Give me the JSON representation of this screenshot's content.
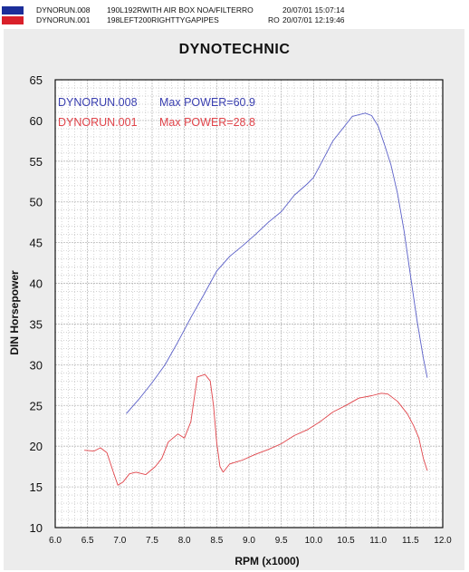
{
  "header": {
    "rows": [
      {
        "run": "DYNORUN.008",
        "description": "190L192RWITH AIR BOX NOA/FILTERRO",
        "timestamp": "20/07/01 15:07:14",
        "color": "#1c2e9a"
      },
      {
        "run": "DYNORUN.001",
        "description": "198LEFT200RIGHTTYGAPIPES",
        "suffix": "RO",
        "timestamp": "20/07/01 12:19:46",
        "color": "#d9202a"
      }
    ]
  },
  "colors": {
    "panel": "#ececec",
    "plot_bg": "#ffffff",
    "grid": "#b8b8b8",
    "blue": "#5a5fc8",
    "red": "#e0444a"
  },
  "chart_data": {
    "type": "line",
    "title": "DYNOTECHNIC",
    "xlabel": "RPM (x1000)",
    "ylabel": "DIN Horsepower",
    "xlim": [
      6.0,
      12.0
    ],
    "ylim": [
      10,
      65
    ],
    "xticks": [
      "6.0",
      "6.5",
      "7.0",
      "7.5",
      "8.0",
      "8.5",
      "9.0",
      "9.5",
      "10.0",
      "10.5",
      "11.0",
      "11.5",
      "12.0"
    ],
    "yticks": [
      "10",
      "15",
      "20",
      "25",
      "30",
      "35",
      "40",
      "45",
      "50",
      "55",
      "60",
      "65"
    ],
    "grid": true,
    "legend": [
      {
        "run": "DYNORUN.008",
        "label": "Max POWER=60.9",
        "color": "#3a3fb0"
      },
      {
        "run": "DYNORUN.001",
        "label": "Max POWER=28.8",
        "color": "#e0444a"
      }
    ],
    "series": [
      {
        "name": "DYNORUN.008",
        "color": "#5a5fc8",
        "x": [
          7.1,
          7.3,
          7.5,
          7.7,
          7.9,
          8.1,
          8.3,
          8.5,
          8.7,
          8.9,
          9.1,
          9.3,
          9.5,
          9.7,
          9.9,
          10.0,
          10.1,
          10.3,
          10.5,
          10.6,
          10.8,
          10.9,
          11.0,
          11.1,
          11.2,
          11.3,
          11.4,
          11.5,
          11.6,
          11.7,
          11.76
        ],
        "y": [
          24.0,
          25.8,
          27.8,
          30.0,
          32.8,
          35.8,
          38.6,
          41.5,
          43.3,
          44.6,
          46.0,
          47.5,
          48.8,
          50.8,
          52.2,
          53.0,
          54.5,
          57.5,
          59.5,
          60.5,
          60.9,
          60.6,
          59.3,
          57.0,
          54.5,
          51.0,
          46.5,
          41.0,
          35.5,
          30.8,
          28.4
        ]
      },
      {
        "name": "DYNORUN.001",
        "color": "#e0444a",
        "x": [
          6.45,
          6.6,
          6.7,
          6.8,
          6.9,
          6.97,
          7.05,
          7.15,
          7.25,
          7.4,
          7.55,
          7.65,
          7.75,
          7.9,
          8.0,
          8.1,
          8.2,
          8.32,
          8.4,
          8.45,
          8.5,
          8.55,
          8.6,
          8.7,
          8.9,
          9.1,
          9.3,
          9.5,
          9.7,
          9.9,
          10.1,
          10.3,
          10.5,
          10.7,
          10.9,
          11.05,
          11.15,
          11.3,
          11.45,
          11.55,
          11.63,
          11.7,
          11.76
        ],
        "y": [
          19.5,
          19.4,
          19.8,
          19.2,
          16.8,
          15.2,
          15.6,
          16.6,
          16.8,
          16.5,
          17.5,
          18.5,
          20.5,
          21.5,
          21.0,
          23.0,
          28.5,
          28.8,
          28.0,
          25.0,
          20.5,
          17.5,
          16.8,
          17.8,
          18.3,
          19.0,
          19.6,
          20.3,
          21.3,
          22.0,
          23.0,
          24.2,
          25.0,
          25.9,
          26.2,
          26.5,
          26.4,
          25.5,
          24.0,
          22.5,
          21.0,
          18.5,
          17.0
        ]
      }
    ]
  }
}
